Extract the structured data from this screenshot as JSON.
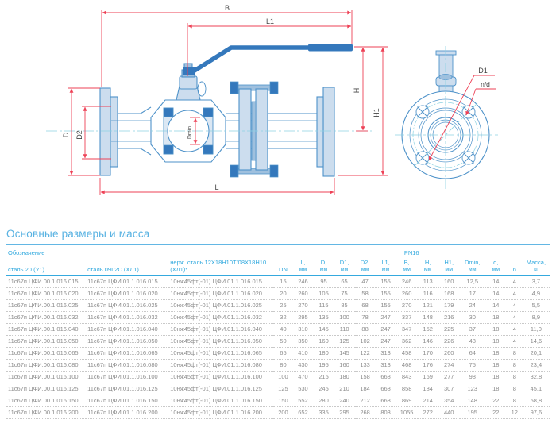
{
  "drawing": {
    "labels": {
      "b": "B",
      "l1": "L1",
      "h": "H",
      "h1": "H1",
      "d": "D",
      "d2": "D2",
      "dmin": "Dmin",
      "l": "L",
      "d1": "D1",
      "nd": "n/d"
    },
    "colors": {
      "outline_blue": "#4e92c9",
      "light_fill": "#ccddee",
      "dark_fill": "#3478bc",
      "dimension_red": "#ee4156",
      "centerline_cyan": "#8cd2e2",
      "label_gray": "#444444"
    }
  },
  "section_title": "Основные размеры и масса",
  "table": {
    "designation_group_label": "Обозначение",
    "pressure_group_label": "PN16",
    "designation_columns": [
      "сталь 20 (У1)",
      "сталь 09Г2С (ХЛ1)",
      "нерж. сталь 12Х18Н10Т/08Х18Н10 (ХЛ1)*"
    ],
    "numeric_columns": [
      {
        "label": "DN",
        "unit": ""
      },
      {
        "label": "L,",
        "unit": "мм"
      },
      {
        "label": "D,",
        "unit": "мм"
      },
      {
        "label": "D1,",
        "unit": "мм"
      },
      {
        "label": "D2,",
        "unit": "мм"
      },
      {
        "label": "L1,",
        "unit": "мм"
      },
      {
        "label": "B,",
        "unit": "мм"
      },
      {
        "label": "H,",
        "unit": "мм"
      },
      {
        "label": "H1,",
        "unit": "мм"
      },
      {
        "label": "Dmin,",
        "unit": "мм"
      },
      {
        "label": "d,",
        "unit": "мм"
      },
      {
        "label": "n",
        "unit": ""
      },
      {
        "label": "Масса,",
        "unit": "кг"
      }
    ],
    "rows": [
      {
        "steel_20": "11с67п ЦФИ.00.1.016.015",
        "steel_09g2s": "11с67п ЦФИ.01.1.016.015",
        "stainless": "10нж45фт(-01) ЦФИ.01.1.016.015",
        "values": [
          "15",
          "246",
          "95",
          "65",
          "47",
          "155",
          "246",
          "113",
          "160",
          "12,5",
          "14",
          "4",
          "3,7"
        ]
      },
      {
        "steel_20": "11с67п ЦФИ.00.1.016.020",
        "steel_09g2s": "11с67п ЦФИ.01.1.016.020",
        "stainless": "10нж45фт(-01) ЦФИ.01.1.016.020",
        "values": [
          "20",
          "260",
          "105",
          "75",
          "58",
          "155",
          "260",
          "116",
          "168",
          "17",
          "14",
          "4",
          "4,9"
        ]
      },
      {
        "steel_20": "11с67п ЦФИ.00.1.016.025",
        "steel_09g2s": "11с67п ЦФИ.01.1.016.025",
        "stainless": "10нж45фт(-01) ЦФИ.01.1.016.025",
        "values": [
          "25",
          "270",
          "115",
          "85",
          "68",
          "155",
          "270",
          "121",
          "179",
          "24",
          "14",
          "4",
          "5,5"
        ]
      },
      {
        "steel_20": "11с67п ЦФИ.00.1.016.032",
        "steel_09g2s": "11с67п ЦФИ.01.1.016.032",
        "stainless": "10нж45фт(-01) ЦФИ.01.1.016.032",
        "values": [
          "32",
          "295",
          "135",
          "100",
          "78",
          "247",
          "337",
          "148",
          "216",
          "30",
          "18",
          "4",
          "8,9"
        ]
      },
      {
        "steel_20": "11с67п ЦФИ.00.1.016.040",
        "steel_09g2s": "11с67п ЦФИ.01.1.016.040",
        "stainless": "10нж45фт(-01) ЦФИ.01.1.016.040",
        "values": [
          "40",
          "310",
          "145",
          "110",
          "88",
          "247",
          "347",
          "152",
          "225",
          "37",
          "18",
          "4",
          "11,0"
        ]
      },
      {
        "steel_20": "11с67п ЦФИ.00.1.016.050",
        "steel_09g2s": "11с67п ЦФИ.01.1.016.050",
        "stainless": "10нж45фт(-01) ЦФИ.01.1.016.050",
        "values": [
          "50",
          "350",
          "160",
          "125",
          "102",
          "247",
          "362",
          "146",
          "226",
          "48",
          "18",
          "4",
          "14,6"
        ]
      },
      {
        "steel_20": "11с67п ЦФИ.00.1.016.065",
        "steel_09g2s": "11с67п ЦФИ.01.1.016.065",
        "stainless": "10нж45фт(-01) ЦФИ.01.1.016.065",
        "values": [
          "65",
          "410",
          "180",
          "145",
          "122",
          "313",
          "458",
          "170",
          "260",
          "64",
          "18",
          "8",
          "20,1"
        ]
      },
      {
        "steel_20": "11с67п ЦФИ.00.1.016.080",
        "steel_09g2s": "11с67п ЦФИ.01.1.016.080",
        "stainless": "10нж45фт(-01) ЦФИ.01.1.016.080",
        "values": [
          "80",
          "430",
          "195",
          "160",
          "133",
          "313",
          "468",
          "176",
          "274",
          "75",
          "18",
          "8",
          "23,4"
        ]
      },
      {
        "steel_20": "11с67п ЦФИ.00.1.016.100",
        "steel_09g2s": "11с67п ЦФИ.01.1.016.100",
        "stainless": "10нж45фт(-01) ЦФИ.01.1.016.100",
        "values": [
          "100",
          "470",
          "215",
          "180",
          "158",
          "668",
          "843",
          "169",
          "277",
          "98",
          "18",
          "8",
          "32,8"
        ]
      },
      {
        "steel_20": "11с67п ЦФИ.00.1.016.125",
        "steel_09g2s": "11с67п ЦФИ.01.1.016.125",
        "stainless": "10нж45фт(-01) ЦФИ.01.1.016.125",
        "values": [
          "125",
          "530",
          "245",
          "210",
          "184",
          "668",
          "858",
          "184",
          "307",
          "123",
          "18",
          "8",
          "45,1"
        ]
      },
      {
        "steel_20": "11с67п ЦФИ.00.1.016.150",
        "steel_09g2s": "11с67п ЦФИ.01.1.016.150",
        "stainless": "10нж45фт(-01) ЦФИ.01.1.016.150",
        "values": [
          "150",
          "552",
          "280",
          "240",
          "212",
          "668",
          "869",
          "214",
          "354",
          "148",
          "22",
          "8",
          "58,8"
        ]
      },
      {
        "steel_20": "11с67п ЦФИ.00.1.016.200",
        "steel_09g2s": "11с67п ЦФИ.01.1.016.200",
        "stainless": "10нж45фт(-01) ЦФИ.01.1.016.200",
        "values": [
          "200",
          "652",
          "335",
          "295",
          "268",
          "803",
          "1055",
          "272",
          "440",
          "195",
          "22",
          "12",
          "97,6"
        ]
      }
    ]
  }
}
